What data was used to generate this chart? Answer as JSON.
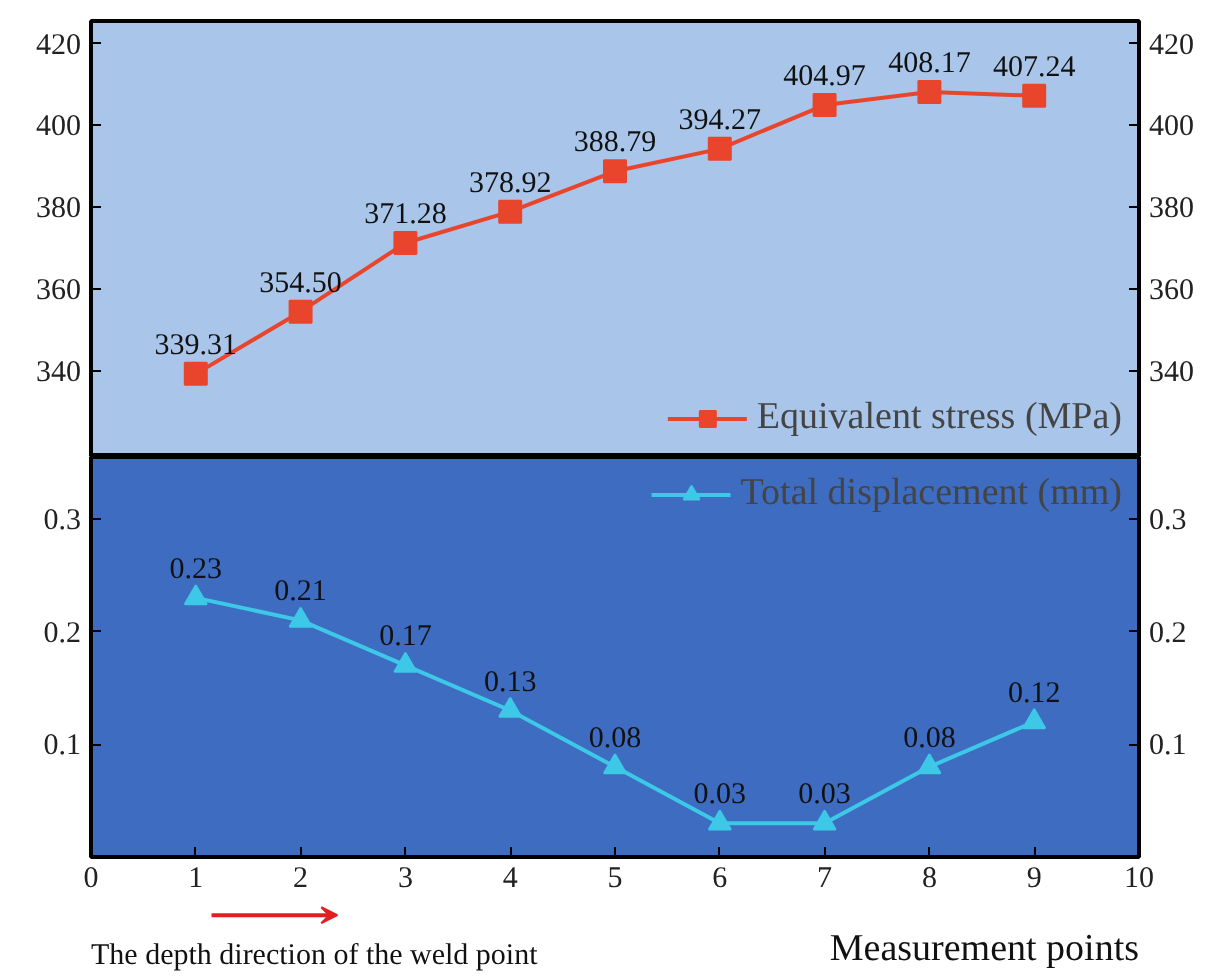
{
  "chart_data": [
    {
      "type": "line",
      "x": [
        1,
        2,
        3,
        4,
        5,
        6,
        7,
        8,
        9
      ],
      "xlim": [
        0,
        10
      ],
      "ylim": [
        319,
        425.5
      ],
      "yticks": [
        340,
        360,
        380,
        400,
        420
      ],
      "y2lim": [
        319,
        425.5
      ],
      "y2ticks": [
        340,
        360,
        380,
        400,
        420
      ],
      "tick_labels": "y",
      "grid": false,
      "legend": "bottom right",
      "marker": "square",
      "line_style": "solid",
      "series": [
        {
          "name": "Equivalent stress (MPa)",
          "color": "#e8452c",
          "values": [
            339.31,
            354.5,
            371.28,
            378.92,
            388.79,
            394.27,
            404.97,
            408.17,
            407.24
          ],
          "value_labels": [
            "339.31",
            "354.50",
            "371.28",
            "378.92",
            "388.79",
            "394.27",
            "404.97",
            "408.17",
            "407.24"
          ]
        }
      ]
    },
    {
      "type": "line",
      "x": [
        1,
        2,
        3,
        4,
        5,
        6,
        7,
        8,
        9
      ],
      "xlim": [
        0,
        10
      ],
      "xticks": [
        0,
        1,
        2,
        3,
        4,
        5,
        6,
        7,
        8,
        9,
        10
      ],
      "ylim": [
        0,
        0.355
      ],
      "yticks": [
        0.1,
        0.2,
        0.3
      ],
      "y2lim": [
        0,
        0.355
      ],
      "y2ticks": [
        0.1,
        0.2,
        0.3
      ],
      "xlabel": "Measurement points",
      "grid": false,
      "legend": "top right",
      "marker": "triangle",
      "line_style": "solid",
      "annotations": [
        "The depth direction of the weld point"
      ],
      "series": [
        {
          "name": "Total displacement (mm)",
          "color": "#3ec8e8",
          "values": [
            0.23,
            0.21,
            0.17,
            0.13,
            0.08,
            0.03,
            0.03,
            0.08,
            0.12
          ],
          "value_labels": [
            "0.23",
            "0.21",
            "0.17",
            "0.13",
            "0.08",
            "0.03",
            "0.03",
            "0.08",
            "0.12"
          ]
        }
      ]
    }
  ]
}
